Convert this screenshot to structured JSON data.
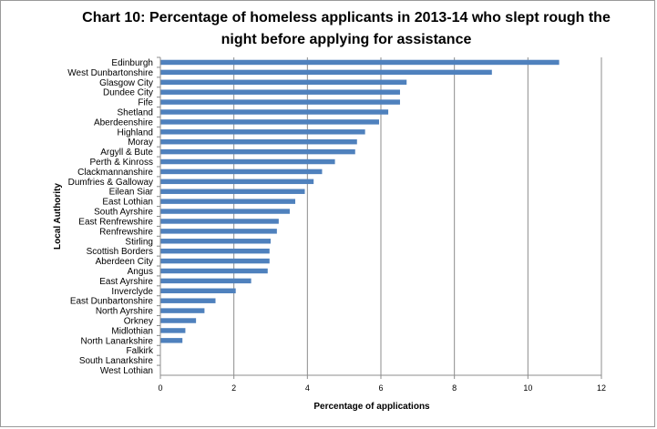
{
  "title_line1": "Chart 10:   Percentage of homeless applicants in 2013-14 who slept rough the",
  "title_line2": "night before applying for assistance",
  "chart_data": {
    "type": "bar",
    "orientation": "horizontal",
    "title": "Chart 10:   Percentage of homeless applicants in 2013-14 who slept rough the night before applying for assistance",
    "xlabel": "Percentage of applications",
    "ylabel": "Local Authority",
    "xlim": [
      0,
      12
    ],
    "xticks": [
      "0",
      "2",
      "4",
      "6",
      "8",
      "10",
      "12"
    ],
    "grid": "vertical",
    "legend": "none",
    "bar_color": "#4f81bd",
    "categories": [
      "Edinburgh",
      "West Dunbartonshire",
      "Glasgow City",
      "Dundee City",
      "Fife",
      "Shetland",
      "Aberdeenshire",
      "Highland",
      "Moray",
      "Argyll & Bute",
      "Perth & Kinross",
      "Clackmannanshire",
      "Dumfries & Galloway",
      "Eilean Siar",
      "East Lothian",
      "South Ayrshire",
      "East Renfrewshire",
      "Renfrewshire",
      "Stirling",
      "Scottish Borders",
      "Aberdeen City",
      "Angus",
      "East Ayrshire",
      "Inverclyde",
      "East Dunbartonshire",
      "North Ayrshire",
      "Orkney",
      "Midlothian",
      "North Lanarkshire",
      "Falkirk",
      "South Lanarkshire",
      "West Lothian"
    ],
    "values": [
      10.85,
      9.02,
      6.7,
      6.52,
      6.52,
      6.2,
      5.95,
      5.57,
      5.35,
      5.3,
      4.75,
      4.4,
      4.17,
      3.93,
      3.67,
      3.52,
      3.22,
      3.17,
      3.0,
      2.97,
      2.97,
      2.92,
      2.47,
      2.05,
      1.5,
      1.2,
      0.97,
      0.68,
      0.6,
      0,
      0,
      0
    ]
  }
}
